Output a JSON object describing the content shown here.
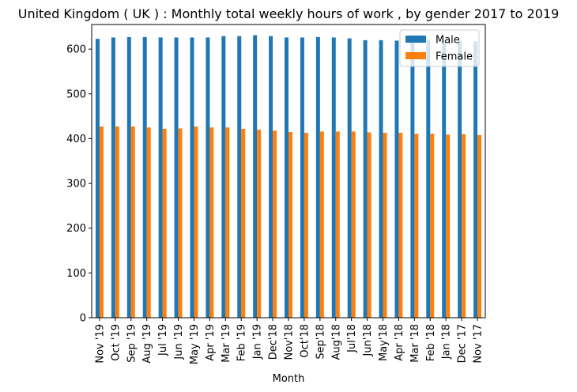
{
  "chart_data": {
    "type": "bar",
    "title": "United Kingdom ( UK ) : Monthly total weekly hours of work , by gender 2017 to 2019",
    "xlabel": "Month",
    "ylabel": "",
    "ylim": [
      0,
      655
    ],
    "yticks": [
      "0",
      "100",
      "200",
      "300",
      "400",
      "500",
      "600"
    ],
    "grid": false,
    "legend_position": "top-right",
    "categories": [
      "Nov '19",
      "Oct '19",
      "Sep '19",
      "Aug '19",
      "Jul '19",
      "Jun '19",
      "May '19",
      "Apr '19",
      "Mar '19",
      "Feb '19",
      "Jan '19",
      "Dec'18",
      "Nov'18",
      "Oct'18",
      "Sep'18",
      "Aug'18",
      "Jul'18",
      "Jun'18",
      "May'18",
      "Apr '18",
      "Mar '18",
      "Feb '18",
      "Jan '18",
      "Dec '17",
      "Nov '17"
    ],
    "series": [
      {
        "name": "Male",
        "color": "#1f77b4",
        "values": [
          623,
          626,
          627,
          627,
          626,
          626,
          626,
          626,
          629,
          629,
          631,
          629,
          626,
          626,
          627,
          626,
          624,
          620,
          620,
          619,
          621,
          621,
          620,
          619,
          617
        ]
      },
      {
        "name": "Female",
        "color": "#ff7f0e",
        "values": [
          427,
          427,
          427,
          425,
          422,
          423,
          427,
          425,
          425,
          422,
          420,
          418,
          415,
          413,
          416,
          416,
          416,
          414,
          413,
          413,
          411,
          411,
          409,
          410,
          408
        ]
      }
    ]
  }
}
